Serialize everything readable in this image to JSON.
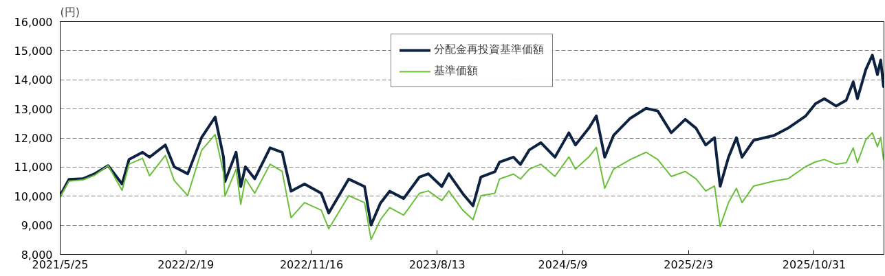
{
  "chart_data": {
    "type": "line",
    "ylabel": "(円)",
    "x": [
      "2021-05-25",
      "2021-06-13",
      "2021-07-13",
      "2021-08-07",
      "2021-09-05",
      "2021-10-05",
      "2021-10-20",
      "2021-11-18",
      "2021-12-03",
      "2022-01-06",
      "2022-01-25",
      "2022-02-23",
      "2022-03-25",
      "2022-04-23",
      "2022-05-11",
      "2022-05-14",
      "2022-06-07",
      "2022-06-17",
      "2022-06-27",
      "2022-07-17",
      "2022-08-19",
      "2022-09-14",
      "2022-10-03",
      "2022-11-01",
      "2022-12-07",
      "2022-12-23",
      "2023-02-04",
      "2023-03-10",
      "2023-03-24",
      "2023-04-13",
      "2023-05-03",
      "2023-06-02",
      "2023-07-06",
      "2023-07-25",
      "2023-08-23",
      "2023-09-07",
      "2023-10-07",
      "2023-10-29",
      "2023-11-15",
      "2023-12-15",
      "2023-12-25",
      "2024-01-24",
      "2024-02-08",
      "2024-02-27",
      "2024-03-23",
      "2024-04-22",
      "2024-05-22",
      "2024-06-05",
      "2024-07-04",
      "2024-07-20",
      "2024-08-07",
      "2024-08-26",
      "2024-10-01",
      "2024-11-04",
      "2024-11-29",
      "2024-12-28",
      "2025-01-27",
      "2025-02-19",
      "2025-03-12",
      "2025-03-31",
      "2025-04-12",
      "2025-04-30",
      "2025-05-17",
      "2025-05-29",
      "2025-06-23",
      "2025-08-06",
      "2025-09-05",
      "2025-10-13",
      "2025-11-03",
      "2025-11-22",
      "2025-12-17",
      "2026-01-08",
      "2026-01-23",
      "2026-02-01",
      "2026-02-19",
      "2026-03-05",
      "2026-03-16",
      "2026-03-23",
      "2026-03-29"
    ],
    "series": [
      {
        "name": "分配金再投資基準価額",
        "color": "#0d2240",
        "values": [
          10020,
          10580,
          10600,
          10770,
          11050,
          10420,
          11260,
          11510,
          11340,
          11760,
          11010,
          10770,
          12020,
          12720,
          11340,
          10500,
          11510,
          10330,
          11010,
          10600,
          11660,
          11510,
          10170,
          10420,
          10100,
          9420,
          10590,
          10330,
          9010,
          9760,
          10170,
          9920,
          10660,
          10770,
          10330,
          10770,
          10090,
          9670,
          10660,
          10840,
          11170,
          11340,
          11090,
          11590,
          11840,
          11340,
          12180,
          11760,
          12340,
          12760,
          11340,
          12090,
          12680,
          13020,
          12930,
          12180,
          12640,
          12340,
          11760,
          12010,
          10340,
          11340,
          12010,
          11340,
          11920,
          12090,
          12340,
          12760,
          13180,
          13350,
          13100,
          13300,
          13930,
          13350,
          14350,
          14850,
          14180,
          14680,
          13770
        ]
      },
      {
        "name": "基準価額",
        "color": "#6abf3a",
        "values": [
          9980,
          10520,
          10560,
          10720,
          11050,
          10200,
          11100,
          11300,
          10700,
          11400,
          10540,
          10020,
          11580,
          12120,
          10800,
          10000,
          10930,
          9720,
          10600,
          10100,
          11100,
          10850,
          9260,
          9780,
          9520,
          8880,
          10020,
          9780,
          8510,
          9190,
          9610,
          9350,
          10100,
          10180,
          9850,
          10180,
          9520,
          9190,
          10020,
          10100,
          10590,
          10760,
          10590,
          10930,
          11100,
          10680,
          11350,
          10930,
          11350,
          11680,
          10270,
          10930,
          11260,
          11510,
          11260,
          10680,
          10850,
          10600,
          10180,
          10350,
          8960,
          9780,
          10270,
          9780,
          10350,
          10520,
          10600,
          11020,
          11180,
          11260,
          11100,
          11150,
          11660,
          11150,
          11940,
          12180,
          11700,
          12020,
          11260
        ]
      }
    ],
    "xlim": [
      "2021-05-25",
      "2026-03-30"
    ],
    "xticks": [
      {
        "value": "2021-05-25",
        "label": "2021/5/25"
      },
      {
        "value": "2022-02-19",
        "label": "2022/2/19"
      },
      {
        "value": "2022-11-16",
        "label": "2022/11/16"
      },
      {
        "value": "2023-08-13",
        "label": "2023/8/13"
      },
      {
        "value": "2024-05-09",
        "label": "2024/5/9"
      },
      {
        "value": "2025-02-03",
        "label": "2025/2/3"
      },
      {
        "value": "2025-10-31",
        "label": "2025/10/31"
      }
    ],
    "ylim": [
      8000,
      16000
    ],
    "yticks": [
      {
        "value": 8000,
        "label": "8,000"
      },
      {
        "value": 9000,
        "label": "9,000"
      },
      {
        "value": 10000,
        "label": "10,000"
      },
      {
        "value": 11000,
        "label": "11,000"
      },
      {
        "value": 12000,
        "label": "12,000"
      },
      {
        "value": 13000,
        "label": "13,000"
      },
      {
        "value": 14000,
        "label": "14,000"
      },
      {
        "value": 15000,
        "label": "15,000"
      },
      {
        "value": 16000,
        "label": "16,000"
      }
    ],
    "grid": "y",
    "legend": "top",
    "line_style": "solid",
    "marker": "none"
  }
}
